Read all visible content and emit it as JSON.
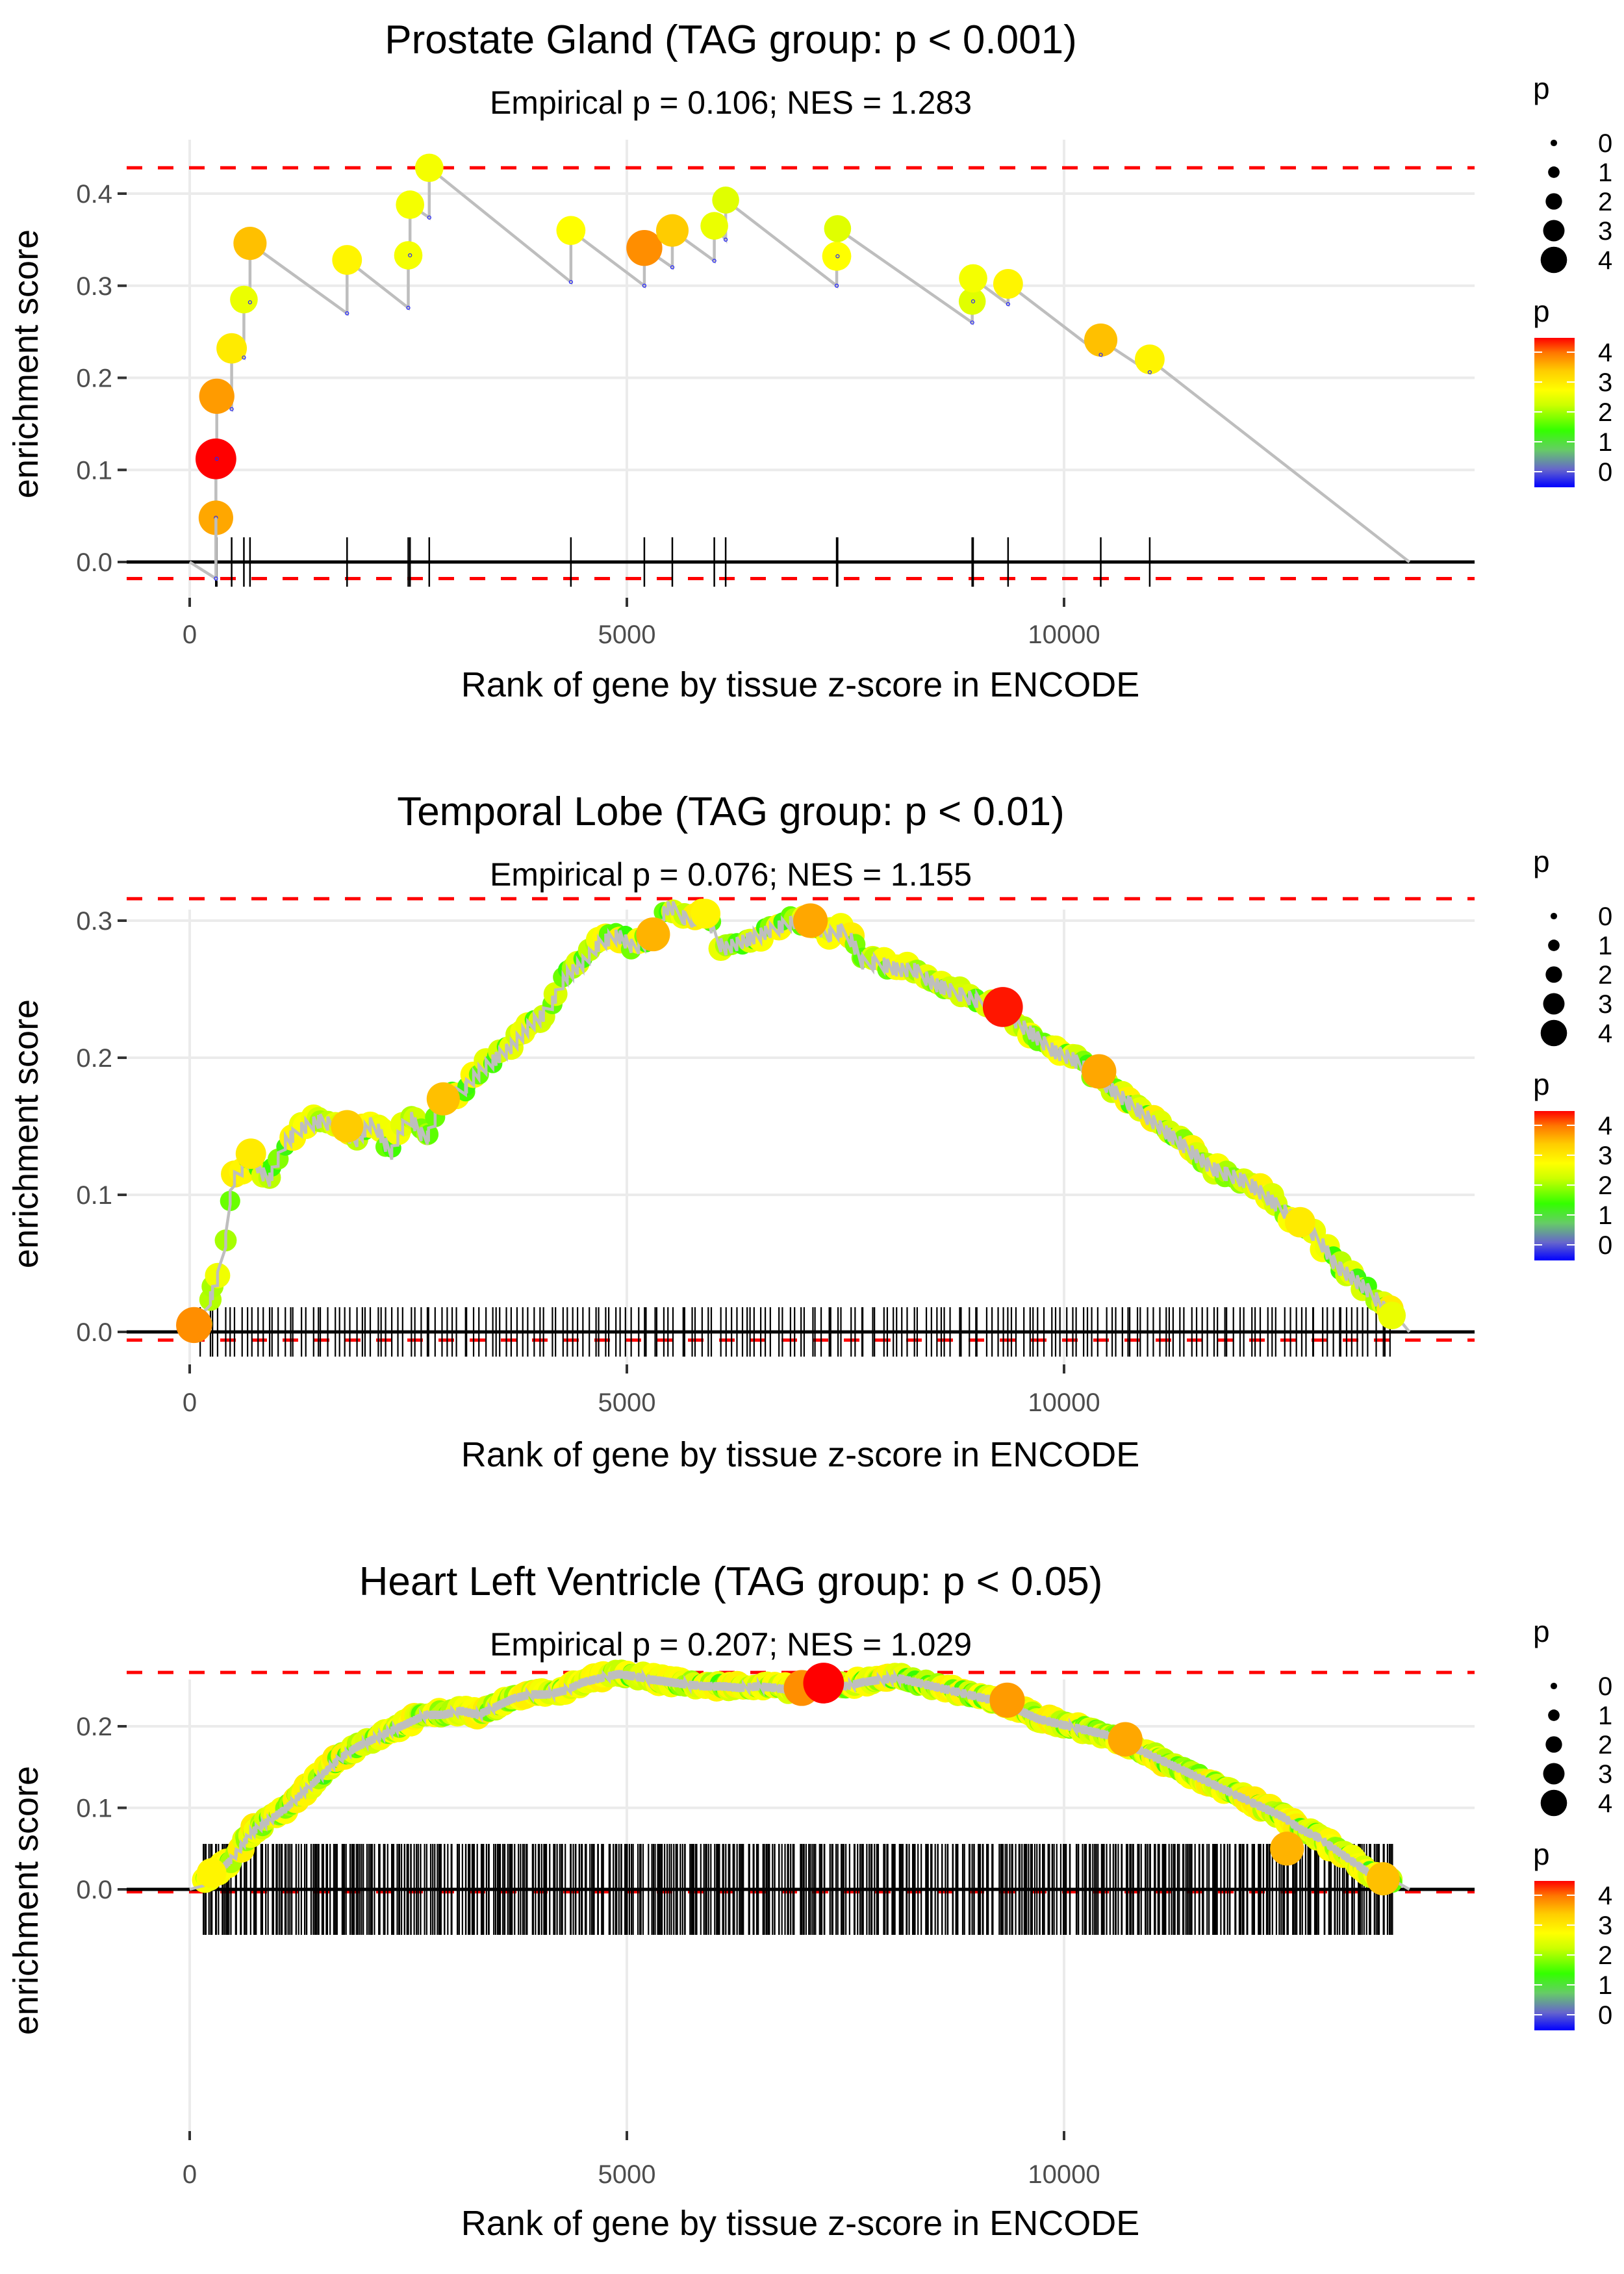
{
  "legend": {
    "size_title": "p",
    "size_labels": [
      "0",
      "1",
      "2",
      "3",
      "4"
    ],
    "color_title": "p",
    "color_labels": [
      "4",
      "3",
      "2",
      "1",
      "0"
    ],
    "color_scale": [
      "#0000ff",
      "#6f6fc8",
      "#66cc66",
      "#33ff00",
      "#ccff00",
      "#ffff00",
      "#ffcc00",
      "#ff8800",
      "#ff0000"
    ]
  },
  "chart_data": [
    {
      "type": "scatter",
      "title": "Prostate Gland (TAG group: p < 0.001)",
      "subtitle": "Empirical p = 0.106; NES = 1.283",
      "xlabel": "Rank of gene by tissue z-score in ENCODE",
      "ylabel": "enrichment score",
      "xlim": [
        -700,
        14700
      ],
      "ylim": [
        -0.03,
        0.45
      ],
      "x_ticks": [
        0,
        5000,
        10000
      ],
      "x_tick_labels": [
        "0",
        "5000",
        "10000"
      ],
      "y_ticks": [
        0.0,
        0.1,
        0.2,
        0.3,
        0.4
      ],
      "y_tick_labels": [
        "0.0",
        "0.1",
        "0.2",
        "0.3",
        "0.4"
      ],
      "max_es_line": 0.428,
      "min_es_line": -0.018,
      "grid": true,
      "legend_position": "right",
      "end_rank": 13950,
      "hits": [
        {
          "x": 300,
          "low": -0.018,
          "y": 0.048,
          "p": 3.7
        },
        {
          "x": 300,
          "low": 0.048,
          "y": 0.112,
          "p": 4.6
        },
        {
          "x": 310,
          "low": 0.112,
          "y": 0.18,
          "p": 3.8
        },
        {
          "x": 480,
          "low": 0.166,
          "y": 0.232,
          "p": 3.1
        },
        {
          "x": 620,
          "low": 0.222,
          "y": 0.285,
          "p": 2.7
        },
        {
          "x": 690,
          "low": 0.282,
          "y": 0.346,
          "p": 3.5
        },
        {
          "x": 1800,
          "low": 0.27,
          "y": 0.328,
          "p": 3.0
        },
        {
          "x": 2500,
          "low": 0.276,
          "y": 0.333,
          "p": 2.8
        },
        {
          "x": 2520,
          "low": 0.333,
          "y": 0.388,
          "p": 2.8
        },
        {
          "x": 2740,
          "low": 0.374,
          "y": 0.428,
          "p": 2.8
        },
        {
          "x": 4360,
          "low": 0.304,
          "y": 0.36,
          "p": 2.9
        },
        {
          "x": 5200,
          "low": 0.3,
          "y": 0.341,
          "p": 3.9
        },
        {
          "x": 5520,
          "low": 0.32,
          "y": 0.36,
          "p": 3.4
        },
        {
          "x": 6000,
          "low": 0.327,
          "y": 0.365,
          "p": 2.7
        },
        {
          "x": 6130,
          "low": 0.35,
          "y": 0.393,
          "p": 2.6
        },
        {
          "x": 7400,
          "low": 0.3,
          "y": 0.332,
          "p": 2.9
        },
        {
          "x": 7410,
          "low": 0.332,
          "y": 0.362,
          "p": 2.6
        },
        {
          "x": 8950,
          "low": 0.26,
          "y": 0.283,
          "p": 2.6
        },
        {
          "x": 8960,
          "low": 0.283,
          "y": 0.308,
          "p": 2.8
        },
        {
          "x": 9360,
          "low": 0.28,
          "y": 0.302,
          "p": 3.0
        },
        {
          "x": 10420,
          "low": 0.225,
          "y": 0.241,
          "p": 3.5
        },
        {
          "x": 10980,
          "low": 0.206,
          "y": 0.22,
          "p": 3.0
        }
      ]
    },
    {
      "type": "scatter",
      "title": "Temporal Lobe (TAG group: p < 0.01)",
      "subtitle": "Empirical p = 0.076; NES = 1.155",
      "xlabel": "Rank of gene by tissue z-score in ENCODE",
      "ylabel": "enrichment score",
      "xlim": [
        -700,
        14700
      ],
      "ylim": [
        -0.02,
        0.33
      ],
      "x_ticks": [
        0,
        5000,
        10000
      ],
      "x_tick_labels": [
        "0",
        "5000",
        "10000"
      ],
      "y_ticks": [
        0.0,
        0.1,
        0.2,
        0.3
      ],
      "y_tick_labels": [
        "0.0",
        "0.1",
        "0.2",
        "0.3"
      ],
      "max_es_line": 0.316,
      "min_es_line": -0.006,
      "grid": true,
      "legend_position": "right",
      "end_rank": 13950,
      "curve": [
        [
          0,
          0.0
        ],
        [
          100,
          0.005
        ],
        [
          200,
          0.02
        ],
        [
          300,
          0.035
        ],
        [
          400,
          0.06
        ],
        [
          480,
          0.11
        ],
        [
          600,
          0.12
        ],
        [
          700,
          0.13
        ],
        [
          900,
          0.11
        ],
        [
          1100,
          0.14
        ],
        [
          1300,
          0.15
        ],
        [
          1500,
          0.155
        ],
        [
          1700,
          0.15
        ],
        [
          1900,
          0.14
        ],
        [
          2100,
          0.155
        ],
        [
          2300,
          0.13
        ],
        [
          2500,
          0.16
        ],
        [
          2700,
          0.14
        ],
        [
          2900,
          0.17
        ],
        [
          3100,
          0.175
        ],
        [
          3300,
          0.19
        ],
        [
          3500,
          0.2
        ],
        [
          3700,
          0.21
        ],
        [
          3900,
          0.225
        ],
        [
          4100,
          0.235
        ],
        [
          4300,
          0.26
        ],
        [
          4500,
          0.27
        ],
        [
          4700,
          0.285
        ],
        [
          4900,
          0.29
        ],
        [
          5100,
          0.28
        ],
        [
          5300,
          0.29
        ],
        [
          5450,
          0.31
        ],
        [
          5550,
          0.31
        ],
        [
          5700,
          0.3
        ],
        [
          5900,
          0.305
        ],
        [
          6100,
          0.28
        ],
        [
          6300,
          0.285
        ],
        [
          6500,
          0.29
        ],
        [
          6700,
          0.295
        ],
        [
          6900,
          0.3
        ],
        [
          7100,
          0.3
        ],
        [
          7300,
          0.29
        ],
        [
          7500,
          0.295
        ],
        [
          7700,
          0.27
        ],
        [
          7900,
          0.27
        ],
        [
          8100,
          0.265
        ],
        [
          8300,
          0.265
        ],
        [
          8500,
          0.255
        ],
        [
          8700,
          0.25
        ],
        [
          8900,
          0.245
        ],
        [
          9100,
          0.24
        ],
        [
          9300,
          0.235
        ],
        [
          9500,
          0.225
        ],
        [
          9700,
          0.215
        ],
        [
          9900,
          0.205
        ],
        [
          10100,
          0.2
        ],
        [
          10300,
          0.19
        ],
        [
          10500,
          0.18
        ],
        [
          10700,
          0.17
        ],
        [
          10900,
          0.16
        ],
        [
          11100,
          0.15
        ],
        [
          11300,
          0.14
        ],
        [
          11500,
          0.13
        ],
        [
          11700,
          0.12
        ],
        [
          11900,
          0.115
        ],
        [
          12100,
          0.11
        ],
        [
          12300,
          0.1
        ],
        [
          12500,
          0.09
        ],
        [
          12700,
          0.08
        ],
        [
          12900,
          0.07
        ],
        [
          13100,
          0.05
        ],
        [
          13300,
          0.04
        ],
        [
          13500,
          0.03
        ],
        [
          13700,
          0.015
        ],
        [
          13950,
          0.0
        ]
      ],
      "highlight_points": [
        {
          "x": 50,
          "y": 0.005,
          "p": 3.9
        },
        {
          "x": 700,
          "y": 0.13,
          "p": 3.1
        },
        {
          "x": 1800,
          "y": 0.15,
          "p": 3.4
        },
        {
          "x": 2900,
          "y": 0.17,
          "p": 3.5
        },
        {
          "x": 5300,
          "y": 0.29,
          "p": 3.6
        },
        {
          "x": 5900,
          "y": 0.305,
          "p": 3.0
        },
        {
          "x": 7100,
          "y": 0.3,
          "p": 3.7
        },
        {
          "x": 9300,
          "y": 0.237,
          "p": 4.5
        },
        {
          "x": 10400,
          "y": 0.19,
          "p": 3.7
        },
        {
          "x": 12700,
          "y": 0.08,
          "p": 3.1
        },
        {
          "x": 13750,
          "y": 0.012,
          "p": 2.7
        }
      ],
      "hit_count": 220
    },
    {
      "type": "scatter",
      "title": "Heart Left Ventricle (TAG group: p < 0.05)",
      "subtitle": "Empirical p = 0.207; NES = 1.029",
      "xlabel": "Rank of gene by tissue z-score in ENCODE",
      "ylabel": "enrichment score",
      "xlim": [
        -700,
        14700
      ],
      "ylim": [
        -0.02,
        0.28
      ],
      "x_ticks": [
        0,
        5000,
        10000
      ],
      "x_tick_labels": [
        "0",
        "5000",
        "10000"
      ],
      "y_ticks": [
        0.0,
        0.1,
        0.2
      ],
      "y_tick_labels": [
        "0.0",
        "0.1",
        "0.2"
      ],
      "max_es_line": 0.266,
      "min_es_line": -0.003,
      "grid": true,
      "legend_position": "right",
      "end_rank": 13950,
      "curve": [
        [
          0,
          0.0
        ],
        [
          300,
          0.02
        ],
        [
          500,
          0.04
        ],
        [
          700,
          0.07
        ],
        [
          900,
          0.085
        ],
        [
          1100,
          0.1
        ],
        [
          1300,
          0.12
        ],
        [
          1500,
          0.14
        ],
        [
          1700,
          0.16
        ],
        [
          1900,
          0.175
        ],
        [
          2100,
          0.185
        ],
        [
          2300,
          0.195
        ],
        [
          2500,
          0.205
        ],
        [
          2700,
          0.215
        ],
        [
          2900,
          0.215
        ],
        [
          3100,
          0.22
        ],
        [
          3300,
          0.215
        ],
        [
          3500,
          0.225
        ],
        [
          3700,
          0.235
        ],
        [
          3900,
          0.24
        ],
        [
          4100,
          0.24
        ],
        [
          4300,
          0.245
        ],
        [
          4500,
          0.255
        ],
        [
          4700,
          0.26
        ],
        [
          4900,
          0.265
        ],
        [
          5100,
          0.262
        ],
        [
          5300,
          0.258
        ],
        [
          5500,
          0.255
        ],
        [
          5700,
          0.252
        ],
        [
          5900,
          0.25
        ],
        [
          6100,
          0.25
        ],
        [
          6300,
          0.248
        ],
        [
          6500,
          0.25
        ],
        [
          6700,
          0.248
        ],
        [
          6900,
          0.245
        ],
        [
          7100,
          0.25
        ],
        [
          7300,
          0.253
        ],
        [
          7500,
          0.25
        ],
        [
          7700,
          0.255
        ],
        [
          7900,
          0.258
        ],
        [
          8100,
          0.26
        ],
        [
          8300,
          0.255
        ],
        [
          8500,
          0.25
        ],
        [
          8700,
          0.245
        ],
        [
          8900,
          0.24
        ],
        [
          9100,
          0.235
        ],
        [
          9300,
          0.23
        ],
        [
          9500,
          0.22
        ],
        [
          9700,
          0.21
        ],
        [
          9900,
          0.205
        ],
        [
          10100,
          0.2
        ],
        [
          10300,
          0.195
        ],
        [
          10500,
          0.19
        ],
        [
          10700,
          0.18
        ],
        [
          10900,
          0.17
        ],
        [
          11100,
          0.16
        ],
        [
          11300,
          0.15
        ],
        [
          11500,
          0.14
        ],
        [
          11700,
          0.13
        ],
        [
          11900,
          0.12
        ],
        [
          12100,
          0.11
        ],
        [
          12300,
          0.1
        ],
        [
          12500,
          0.09
        ],
        [
          12700,
          0.075
        ],
        [
          12900,
          0.065
        ],
        [
          13100,
          0.05
        ],
        [
          13300,
          0.035
        ],
        [
          13500,
          0.02
        ],
        [
          13700,
          0.01
        ],
        [
          13950,
          0.0
        ]
      ],
      "highlight_points": [
        {
          "x": 250,
          "y": 0.02,
          "p": 3.0
        },
        {
          "x": 7000,
          "y": 0.247,
          "p": 3.9
        },
        {
          "x": 7250,
          "y": 0.253,
          "p": 4.6
        },
        {
          "x": 9350,
          "y": 0.232,
          "p": 3.8
        },
        {
          "x": 10700,
          "y": 0.184,
          "p": 3.7
        },
        {
          "x": 12550,
          "y": 0.05,
          "p": 3.6
        },
        {
          "x": 13650,
          "y": 0.013,
          "p": 3.5
        }
      ],
      "hit_count": 600
    }
  ]
}
